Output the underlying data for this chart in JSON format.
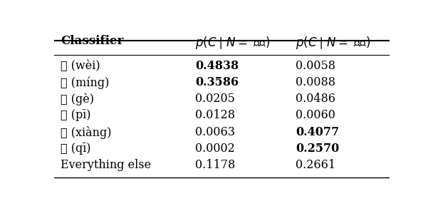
{
  "classifiers": [
    "位 (wèi)",
    "名 (míng)",
    "个 (gè)",
    "批 (pī)",
    "项 (xiàng)",
    "期 (qī)",
    "Everything else"
  ],
  "col2_vals": [
    "0.4838",
    "0.3586",
    "0.0205",
    "0.0128",
    "0.0063",
    "0.0002",
    "0.1178"
  ],
  "col3_vals": [
    "0.0058",
    "0.0088",
    "0.0486",
    "0.0060",
    "0.4077",
    "0.2570",
    "0.2661"
  ],
  "col2_bold": [
    true,
    true,
    false,
    false,
    false,
    false,
    false
  ],
  "col3_bold": [
    false,
    false,
    false,
    false,
    true,
    true,
    false
  ],
  "figsize": [
    6.08,
    2.82
  ],
  "dpi": 100
}
